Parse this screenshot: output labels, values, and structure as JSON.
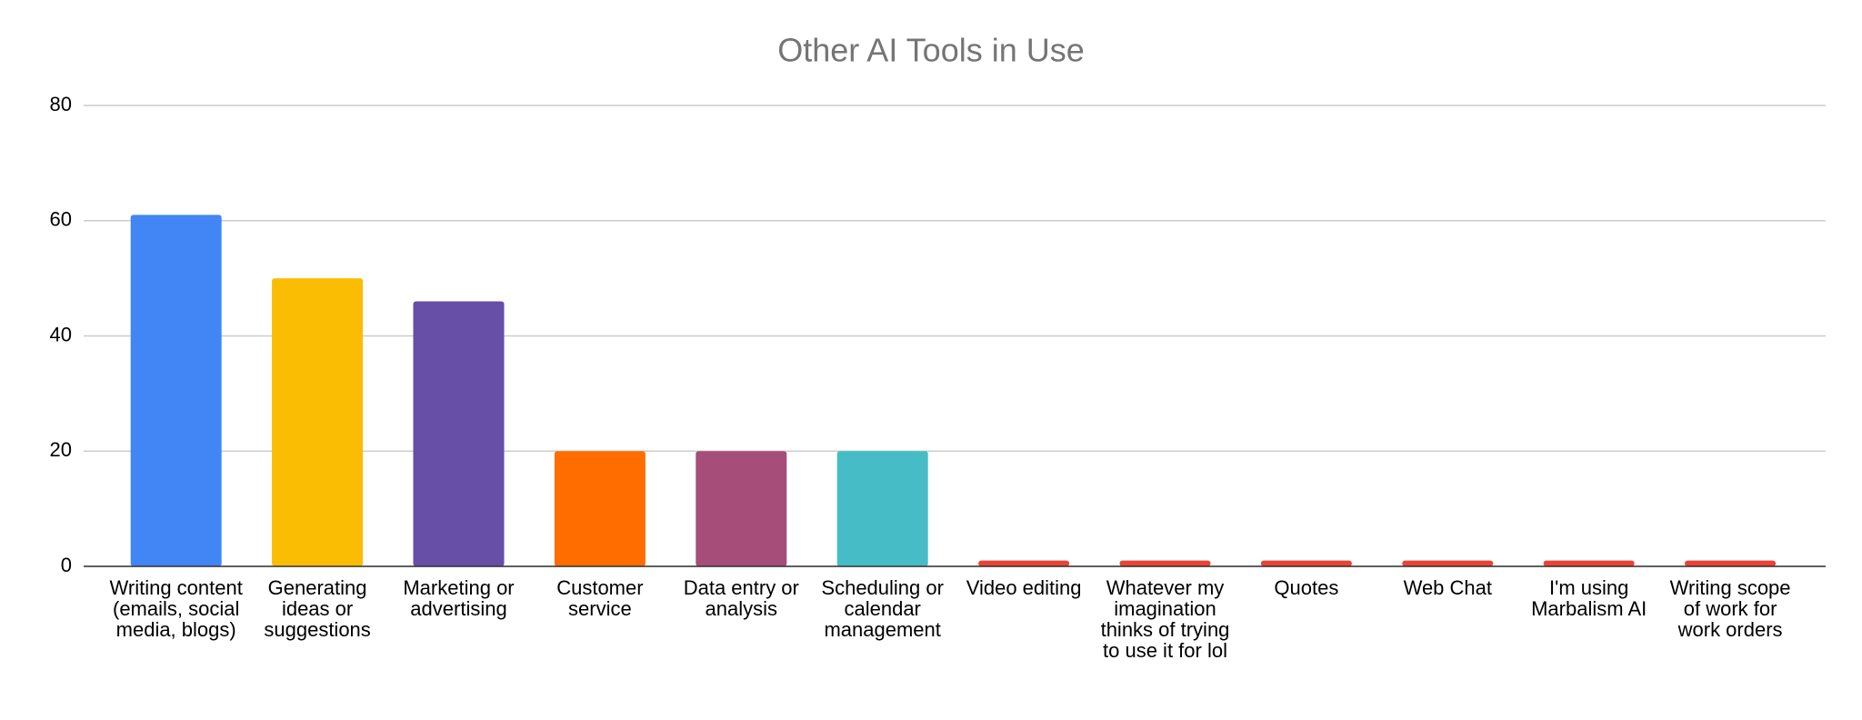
{
  "chart_data": {
    "type": "bar",
    "title": "Other AI Tools in Use",
    "categories": [
      "Writing content (emails, social media, blogs)",
      "Generating ideas or suggestions",
      "Marketing or advertising",
      "Customer service",
      "Data entry or analysis",
      "Scheduling or calendar management",
      "Video editing",
      "Whatever my imagination thinks of trying to use it for lol",
      "Quotes",
      "Web Chat",
      "I'm using Marbalism AI",
      "Writing scope of work for work orders"
    ],
    "values": [
      61,
      50,
      46,
      20,
      20,
      20,
      1,
      1,
      1,
      1,
      1,
      1
    ],
    "colors": [
      "#4285f4",
      "#fbbc04",
      "#674ea7",
      "#ff6d01",
      "#a64d79",
      "#46bdc6",
      "#ea4335",
      "#ea4335",
      "#ea4335",
      "#ea4335",
      "#ea4335",
      "#ea4335"
    ],
    "ylim": [
      0,
      80
    ],
    "yticks": [
      0,
      20,
      40,
      60,
      80
    ],
    "grid": true
  }
}
